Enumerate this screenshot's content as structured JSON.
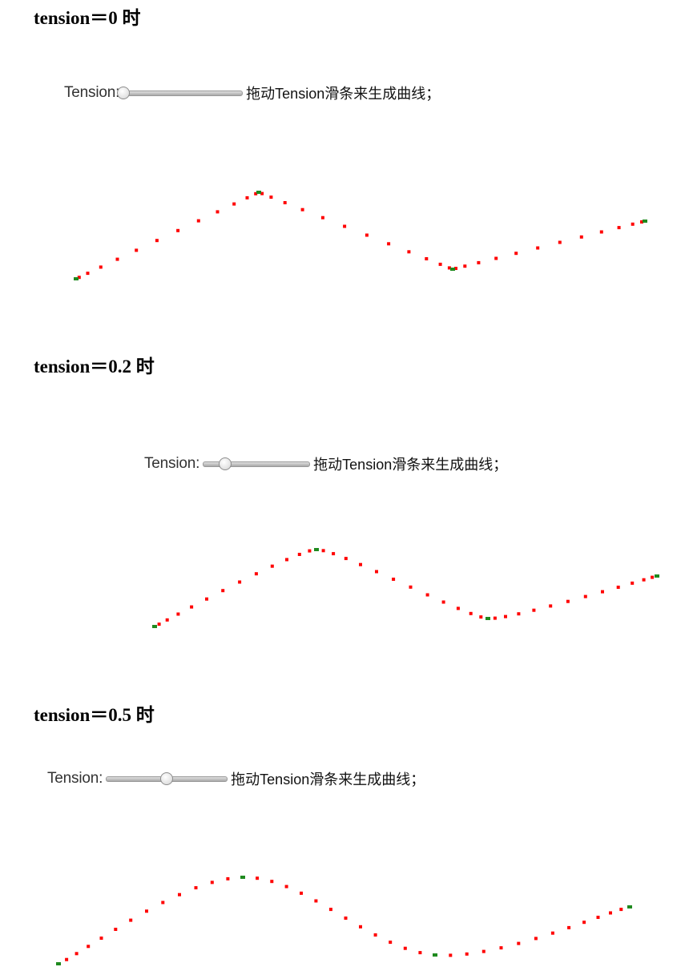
{
  "panels": [
    {
      "heading": "tension＝0 时",
      "slider_label": "Tension:",
      "hint": "拖动Tension滑条来生成曲线；",
      "tension": 0,
      "control_points": [
        [
          95,
          348
        ],
        [
          323,
          240
        ],
        [
          565,
          336
        ],
        [
          805,
          276
        ]
      ]
    },
    {
      "heading": "tension＝0.2 时",
      "slider_label": "Tension:",
      "hint": "拖动Tension滑条来生成曲线；",
      "tension": 0.2,
      "control_points": [
        [
          193,
          782
        ],
        [
          395,
          686
        ],
        [
          609,
          772
        ],
        [
          820,
          719
        ]
      ]
    },
    {
      "heading": "tension＝0.5 时",
      "slider_label": "Tension:",
      "hint": "拖动Tension滑条来生成曲线；",
      "tension": 0.5,
      "control_points": [
        [
          73,
          1203
        ],
        [
          303,
          1095
        ],
        [
          543,
          1192
        ],
        [
          786,
          1132
        ]
      ]
    }
  ],
  "colors": {
    "curve_dot": "#ff0000",
    "control_point": "#1f8a1f"
  }
}
